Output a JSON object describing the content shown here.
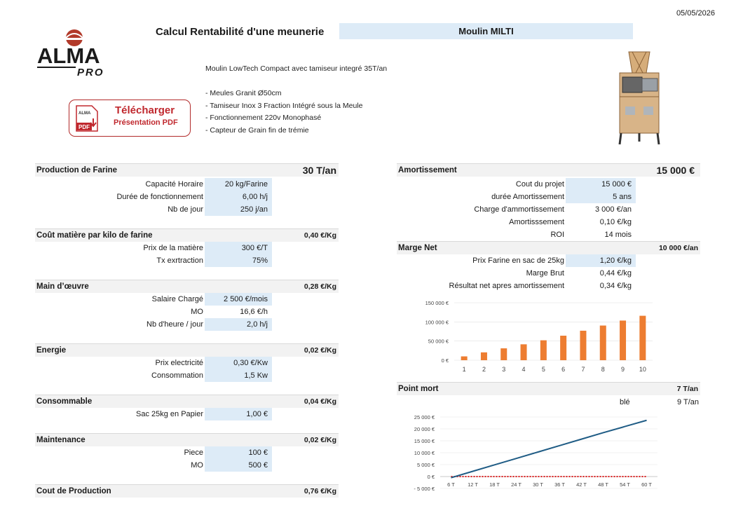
{
  "header": {
    "date": "05/05/2026",
    "title": "Calcul Rentabilité d'une meunerie",
    "model": "Moulin  MILTI",
    "logo_text": "ALMA",
    "logo_sub": "PRO"
  },
  "description": {
    "intro": "Moulin LowTech Compact avec tamiseur integré  35T/an",
    "features": [
      "- Meules Granit Ø50cm",
      "- Tamiseur Inox 3 Fraction Intégré sous la Meule",
      "-  Fonctionnement 220v Monophasé",
      "-  Capteur de Grain fin de trémie"
    ]
  },
  "pdf_button": {
    "line1": "Télécharger",
    "line2": "Présentation PDF",
    "icon_text_top": "ALMA",
    "icon_text_pdf": "PDF"
  },
  "production": {
    "label": "Production de Farine",
    "value": "30 T/an",
    "rows": [
      {
        "label": "Capacité Horaire",
        "value": "20 kg/Farine"
      },
      {
        "label": "Durée de fonctionnement",
        "value": "6,00 h/j"
      },
      {
        "label": "Nb de jour",
        "value": "250 j/an"
      }
    ]
  },
  "cout_matiere": {
    "label": "Coût matière par kilo de farine",
    "value": "0,40 €/Kg",
    "rows": [
      {
        "label": "Prix  de la matière",
        "value": "300 €/T"
      },
      {
        "label": "Tx exrtraction",
        "value": "75%"
      }
    ]
  },
  "main_oeuvre": {
    "label": "Main d’œuvre",
    "value": "0,28 €/Kg",
    "rows": [
      {
        "label": "Salaire Chargé",
        "value": "2 500 €/mois"
      },
      {
        "label": "MO",
        "value": "16,6 €/h"
      },
      {
        "label": "Nb d'heure / jour",
        "value": "2,0 h/j"
      }
    ]
  },
  "energie": {
    "label": "Energie",
    "value": "0,02 €/Kg",
    "rows": [
      {
        "label": "Prix electricité",
        "value": "0,30 €/Kw"
      },
      {
        "label": "Consommation",
        "value": "1,5 Kw"
      }
    ]
  },
  "consommable": {
    "label": "Consommable",
    "value": "0,04 €/Kg",
    "rows": [
      {
        "label": "Sac 25kg en Papier",
        "value": "1,00 €"
      }
    ]
  },
  "maintenance": {
    "label": "Maintenance",
    "value": "0,02 €/Kg",
    "rows": [
      {
        "label": "Piece",
        "value": "100 €"
      },
      {
        "label": "MO",
        "value": "500 €"
      }
    ]
  },
  "cout_production": {
    "label": "Cout  de Production",
    "value": "0,76 €/Kg"
  },
  "amortissement": {
    "label": "Amortissement",
    "value": "15 000 €",
    "rows": [
      {
        "label": "Cout du projet",
        "value": "15 000 €"
      },
      {
        "label": "durée Amortissement",
        "value": "5 ans"
      },
      {
        "label": "Charge d'ammortissement",
        "value": "3 000 €/an"
      },
      {
        "label": "Amortisssement",
        "value": "0,10 €/kg"
      },
      {
        "label": "ROI",
        "value": "14 mois"
      }
    ]
  },
  "marge": {
    "label": "Marge Net",
    "value": "10 000 €/an",
    "rows": [
      {
        "label": "Prix  Farine en sac de 25kg",
        "value": "1,20 €/kg"
      },
      {
        "label": "Marge Brut",
        "value": "0,44 €/kg"
      },
      {
        "label": "Résultat net apres amortissement",
        "value": "0,34 €/kg"
      }
    ]
  },
  "point_mort": {
    "label": "Point mort",
    "value": "7 T/an",
    "sub_label": "blé",
    "sub_value": "9 T/an"
  },
  "colors": {
    "input_bg": "#ddebf7",
    "bar": "#ed7d31",
    "line": "#1f5c85",
    "zero_line": "#e02020"
  },
  "chart_data": [
    {
      "type": "bar",
      "categories": [
        "1",
        "2",
        "3",
        "4",
        "5",
        "6",
        "7",
        "8",
        "9",
        "10"
      ],
      "values": [
        10000,
        20500,
        31000,
        41500,
        52000,
        64000,
        77000,
        90500,
        103500,
        116000
      ],
      "y_ticks": [
        "150 000 €",
        "100 000 €",
        "50 000 €",
        "0 €"
      ],
      "ylim": [
        0,
        150000
      ]
    },
    {
      "type": "line",
      "x": [
        "6 T",
        "12 T",
        "18 T",
        "24 T",
        "30 T",
        "36 T",
        "42 T",
        "48 T",
        "54 T",
        "60 T"
      ],
      "series": [
        {
          "values": [
            -500,
            2200,
            4900,
            7600,
            10300,
            13000,
            15700,
            18400,
            21000,
            23600
          ]
        },
        {
          "values": [
            0,
            0,
            0,
            0,
            0,
            0,
            0,
            0,
            0,
            0
          ]
        }
      ],
      "y_ticks": [
        "25 000 €",
        "20 000 €",
        "15 000 €",
        "10 000 €",
        "5 000 €",
        "0 €",
        "- 5 000 €"
      ],
      "ylim": [
        -5000,
        25000
      ]
    }
  ]
}
